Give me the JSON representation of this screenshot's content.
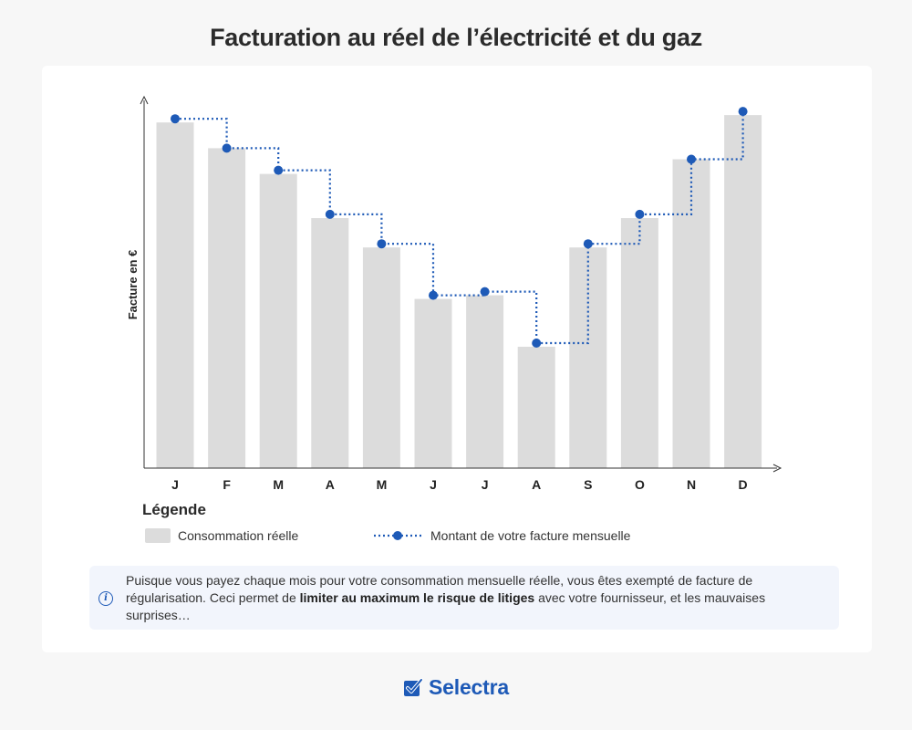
{
  "title": "Facturation au réel de l’électricité et du gaz",
  "chart_data": {
    "type": "bar",
    "title": "Facturation au réel de l’électricité et du gaz",
    "xlabel": "",
    "ylabel": "Facture en €",
    "categories": [
      "J",
      "F",
      "M",
      "A",
      "M",
      "J",
      "J",
      "A",
      "S",
      "O",
      "N",
      "D"
    ],
    "ylim": [
      0,
      100
    ],
    "grid": false,
    "legend": "bottom-left",
    "series": [
      {
        "name": "Consommation réelle",
        "type": "bar",
        "color": "#dcdcdc",
        "values": [
          94,
          87,
          80,
          68,
          60,
          46,
          47,
          33,
          60,
          68,
          84,
          96
        ]
      },
      {
        "name": "Montant de votre facture mensuelle",
        "type": "step-line",
        "color": "#1e5ab7",
        "values": [
          95,
          87,
          81,
          69,
          61,
          47,
          48,
          34,
          61,
          69,
          84,
          97
        ]
      }
    ]
  },
  "legend": {
    "title": "Légende",
    "bar_label": "Consommation réelle",
    "line_label": "Montant de votre facture mensuelle"
  },
  "info": {
    "icon": "info-icon",
    "text_before": "Puisque vous payez chaque mois pour votre consommation mensuelle réelle, vous êtes exempté de facture de régularisation. Ceci permet de ",
    "text_bold": "limiter au maximum le risque de litiges",
    "text_after": " avec votre fournisseur, et les mauvaises surprises…"
  },
  "logo": {
    "icon": "checkbox-logo-icon",
    "text": "Selectra"
  },
  "colors": {
    "accent": "#1e5ab7",
    "bar": "#dcdcdc",
    "info_bg": "#f2f5fc"
  }
}
